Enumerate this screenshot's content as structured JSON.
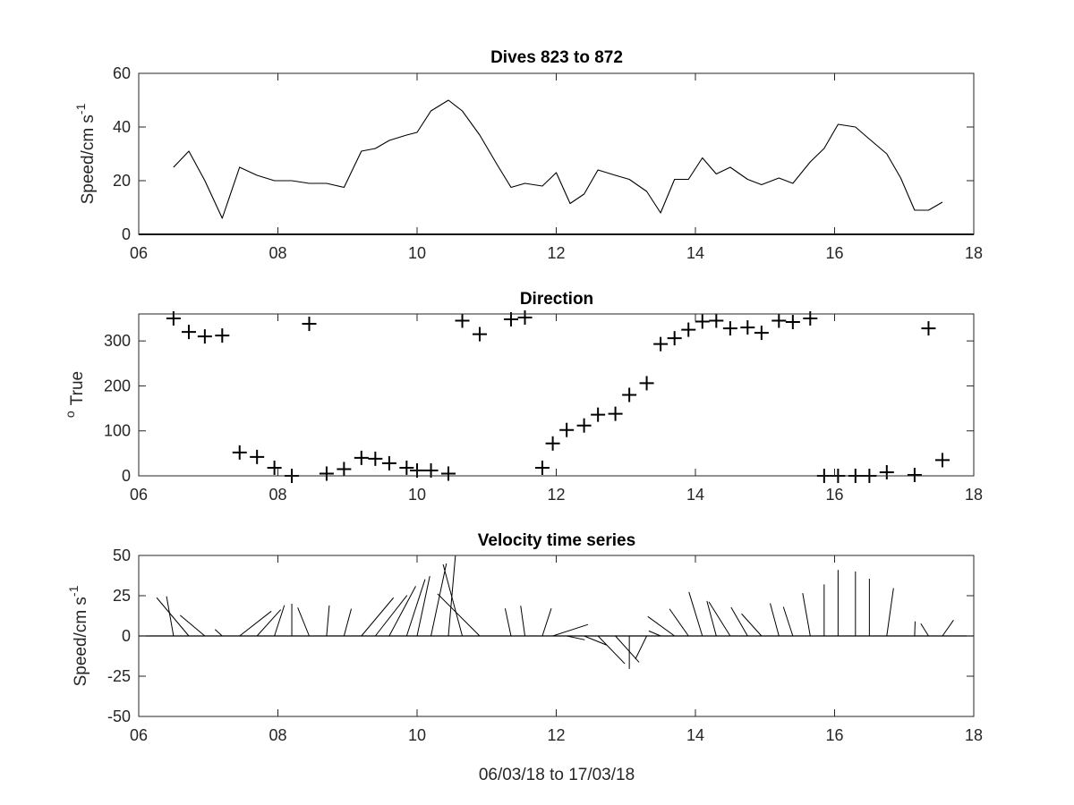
{
  "figure": {
    "xlabel": "06/03/18 to 17/03/18"
  },
  "chart_data": [
    {
      "type": "line",
      "title": "Dives 823 to 872",
      "xlabel": "",
      "ylabel": "Speed/cm s",
      "ylabel_exponent": "-1",
      "xlim": [
        6,
        18
      ],
      "ylim": [
        0,
        60
      ],
      "x_ticks": [
        "06",
        "08",
        "10",
        "12",
        "14",
        "16",
        "18"
      ],
      "y_ticks": [
        "0",
        "20",
        "40",
        "60"
      ],
      "grid": false,
      "zero_line": true,
      "series": [
        {
          "x": [
            6.5,
            6.72,
            6.95,
            7.2,
            7.45,
            7.7,
            7.95,
            8.2,
            8.45,
            8.7,
            8.95,
            9.2,
            9.4,
            9.6,
            9.85,
            10.0,
            10.2,
            10.45,
            10.65,
            10.9,
            11.15,
            11.35,
            11.55,
            11.8,
            12.0,
            12.2,
            12.4,
            12.6,
            12.85,
            13.05,
            13.3,
            13.5,
            13.7,
            13.9,
            14.1,
            14.3,
            14.5,
            14.75,
            14.95,
            15.2,
            15.4,
            15.65,
            15.85,
            16.05,
            16.3,
            16.5,
            16.75,
            16.95,
            17.15,
            17.35,
            17.55
          ],
          "y": [
            25,
            31,
            20,
            6,
            25,
            22,
            20,
            20,
            19,
            19,
            17.5,
            31,
            32,
            35,
            37,
            38,
            46,
            50,
            46,
            37,
            26,
            17.5,
            19,
            18,
            23,
            11.5,
            15,
            24,
            22,
            20.5,
            16,
            8,
            20.5,
            20.5,
            28.5,
            22.5,
            25,
            20.5,
            18.5,
            21,
            19,
            27,
            32,
            41,
            40,
            35.5,
            30,
            21,
            9,
            9,
            12
          ]
        }
      ]
    },
    {
      "type": "scatter",
      "title": "Direction",
      "xlabel": "",
      "ylabel": "True",
      "ylabel_prefix": "o",
      "xlim": [
        6,
        18
      ],
      "ylim": [
        0,
        360
      ],
      "x_ticks": [
        "06",
        "08",
        "10",
        "12",
        "14",
        "16",
        "18"
      ],
      "y_ticks": [
        "0",
        "100",
        "200",
        "300"
      ],
      "grid": false,
      "marker": "+",
      "series": [
        {
          "x": [
            6.5,
            6.72,
            6.95,
            7.2,
            7.45,
            7.7,
            7.95,
            8.2,
            8.45,
            8.7,
            8.95,
            9.2,
            9.4,
            9.6,
            9.85,
            10.0,
            10.2,
            10.45,
            10.65,
            10.9,
            11.35,
            11.55,
            11.8,
            11.95,
            12.15,
            12.4,
            12.6,
            12.85,
            13.05,
            13.3,
            13.5,
            13.7,
            13.9,
            14.1,
            14.3,
            14.5,
            14.75,
            14.95,
            15.2,
            15.4,
            15.65,
            15.85,
            16.05,
            16.3,
            16.5,
            16.75,
            17.15,
            17.35,
            17.55
          ],
          "y": [
            350,
            320,
            310,
            312,
            52,
            42,
            18,
            0,
            338,
            5,
            15,
            40,
            38,
            28,
            18,
            12,
            12,
            5,
            345,
            315,
            348,
            352,
            18,
            72,
            102,
            112,
            136,
            138,
            180,
            206,
            293,
            306,
            325,
            343,
            345,
            328,
            330,
            318,
            345,
            342,
            350,
            0,
            0,
            0,
            0,
            8,
            2,
            328,
            35
          ]
        }
      ]
    },
    {
      "type": "line",
      "subtype": "stick",
      "title": "Velocity time series",
      "xlabel": "06/03/18 to 17/03/18",
      "ylabel": "Speed/cm s",
      "ylabel_exponent": "-1",
      "xlim": [
        6,
        18
      ],
      "ylim": [
        -50,
        50
      ],
      "x_ticks": [
        "06",
        "08",
        "10",
        "12",
        "14",
        "16",
        "18"
      ],
      "y_ticks": [
        "-50",
        "-25",
        "0",
        "25",
        "50"
      ],
      "grid": false,
      "zero_line": true,
      "sticks": {
        "x": [
          6.5,
          6.72,
          6.95,
          7.2,
          7.45,
          7.7,
          7.95,
          8.2,
          8.45,
          8.7,
          8.95,
          9.2,
          9.4,
          9.6,
          9.85,
          10.0,
          10.2,
          10.45,
          10.65,
          10.9,
          11.35,
          11.55,
          11.8,
          11.95,
          12.15,
          12.4,
          12.6,
          12.85,
          13.05,
          13.3,
          13.5,
          13.7,
          13.9,
          14.1,
          14.3,
          14.5,
          14.75,
          14.95,
          15.2,
          15.4,
          15.65,
          15.85,
          16.05,
          16.3,
          16.5,
          16.75,
          17.15,
          17.35,
          17.55
        ],
        "speed": [
          25,
          31,
          20,
          6,
          25,
          22,
          20,
          20,
          19,
          19,
          17.5,
          31,
          32,
          35,
          37,
          38,
          46,
          50,
          46,
          37,
          17.5,
          19,
          18,
          23,
          11.5,
          15,
          24,
          22,
          20.5,
          16,
          8,
          20.5,
          20.5,
          28.5,
          22.5,
          25,
          20.5,
          18.5,
          21,
          19,
          27,
          32,
          41,
          40,
          35.5,
          30,
          9,
          9,
          12
        ],
        "direction": [
          350,
          320,
          310,
          312,
          52,
          42,
          18,
          0,
          338,
          5,
          15,
          40,
          38,
          28,
          18,
          12,
          12,
          5,
          345,
          315,
          348,
          352,
          18,
          72,
          102,
          112,
          136,
          138,
          180,
          206,
          293,
          306,
          325,
          343,
          345,
          328,
          330,
          318,
          345,
          342,
          350,
          0,
          0,
          0,
          0,
          8,
          2,
          328,
          35
        ]
      }
    }
  ]
}
